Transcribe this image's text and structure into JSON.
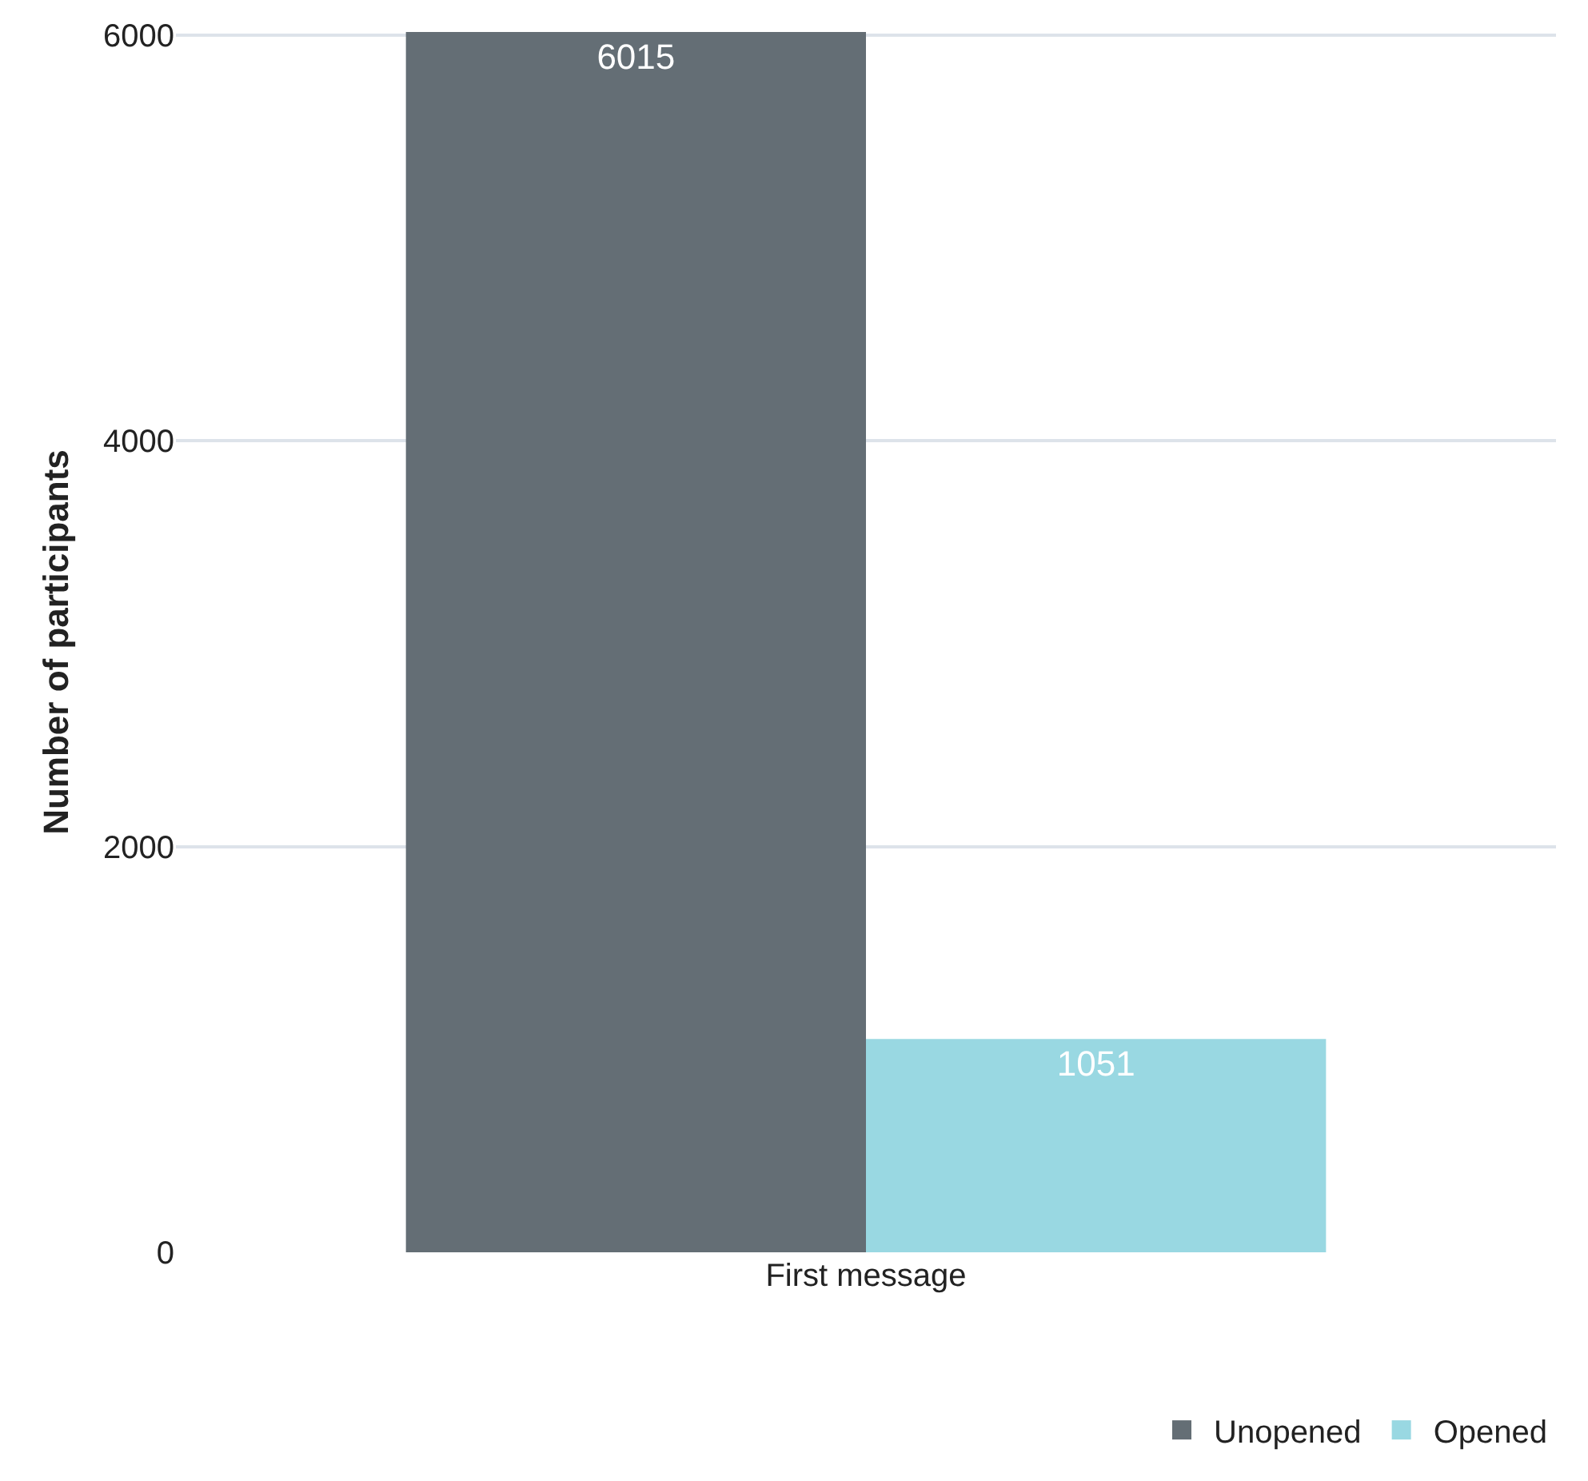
{
  "chart_data": {
    "type": "bar",
    "ylabel": "Number of participants",
    "categories": [
      "First message"
    ],
    "series": [
      {
        "name": "Unopened",
        "color": "#646e75",
        "values": [
          6015
        ]
      },
      {
        "name": "Opened",
        "color": "#99d8e2",
        "values": [
          1051
        ]
      }
    ],
    "ylim": [
      0,
      6015
    ],
    "yticks": [
      0,
      2000,
      4000,
      6000
    ],
    "grid": "y",
    "legend": "bottom right",
    "data_labels": true
  }
}
